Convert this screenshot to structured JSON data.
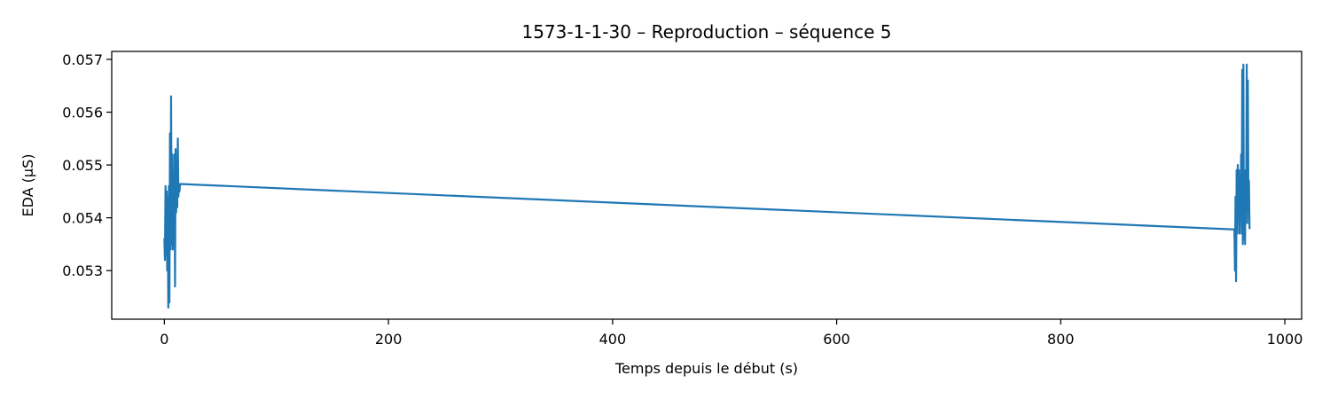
{
  "chart_data": {
    "type": "line",
    "title": "1573-1-1-30 – Reproduction – séquence 5",
    "xlabel": "Temps depuis le début (s)",
    "ylabel": "EDA (µS)",
    "xlim": [
      -47,
      1015
    ],
    "ylim": [
      0.05208,
      0.05715
    ],
    "xticks": [
      0,
      200,
      400,
      600,
      800,
      1000
    ],
    "xtick_labels": [
      "0",
      "200",
      "400",
      "600",
      "800",
      "1000"
    ],
    "yticks": [
      0.053,
      0.054,
      0.055,
      0.056,
      0.057
    ],
    "ytick_labels": [
      "0.053",
      "0.054",
      "0.055",
      "0.056",
      "0.057"
    ],
    "grid": false,
    "series": [
      {
        "color": "#1f77b4",
        "x": [
          0,
          0.5,
          1,
          1.5,
          2,
          2.5,
          3,
          3.5,
          4,
          4.5,
          5,
          5.5,
          6,
          6.5,
          7,
          7.5,
          8,
          8.5,
          9,
          9.5,
          10,
          10.5,
          11,
          11.5,
          12,
          12.5,
          13,
          13.5,
          14,
          955,
          955.5,
          956,
          956.5,
          957,
          957.5,
          958,
          958.5,
          959,
          959.5,
          960,
          960.5,
          961,
          961.5,
          962,
          962.5,
          963,
          963.5,
          964,
          964.5,
          965,
          965.5,
          966,
          966.5,
          967,
          967.5,
          968,
          968.5
        ],
        "y": [
          0.0536,
          0.0532,
          0.0546,
          0.0533,
          0.0545,
          0.053,
          0.0544,
          0.0523,
          0.0546,
          0.0524,
          0.0556,
          0.0534,
          0.0563,
          0.0535,
          0.0552,
          0.0534,
          0.0547,
          0.0537,
          0.0552,
          0.0527,
          0.0553,
          0.0541,
          0.0548,
          0.0542,
          0.0555,
          0.0544,
          0.0546,
          0.0545,
          0.05464,
          0.05378,
          0.053,
          0.0544,
          0.0528,
          0.0549,
          0.0537,
          0.055,
          0.0543,
          0.0549,
          0.0537,
          0.0546,
          0.0541,
          0.0552,
          0.0537,
          0.0568,
          0.0535,
          0.0569,
          0.0536,
          0.0548,
          0.0535,
          0.0549,
          0.0542,
          0.0569,
          0.0539,
          0.0566,
          0.0543,
          0.0547,
          0.0538
        ]
      }
    ]
  }
}
